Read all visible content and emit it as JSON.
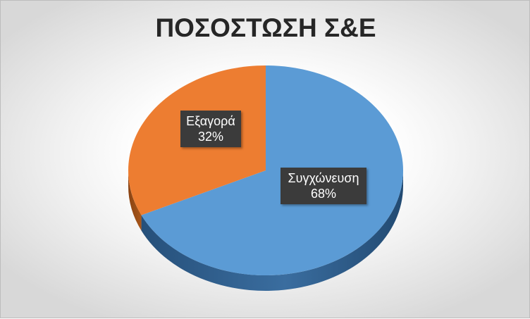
{
  "chart_data": {
    "type": "pie",
    "title": "ΠΟΣΟΣΤΩΣΗ Σ&Ε",
    "categories": [
      "Συγχώνευση",
      "Εξαγορά"
    ],
    "values": [
      68,
      32
    ],
    "value_labels": [
      "68%",
      "32%"
    ],
    "colors": [
      "#5b9bd5",
      "#ed7d31"
    ],
    "side_colors": [
      "#2f5d8a",
      "#9c4f17"
    ],
    "style": "3d",
    "legend": "none"
  }
}
